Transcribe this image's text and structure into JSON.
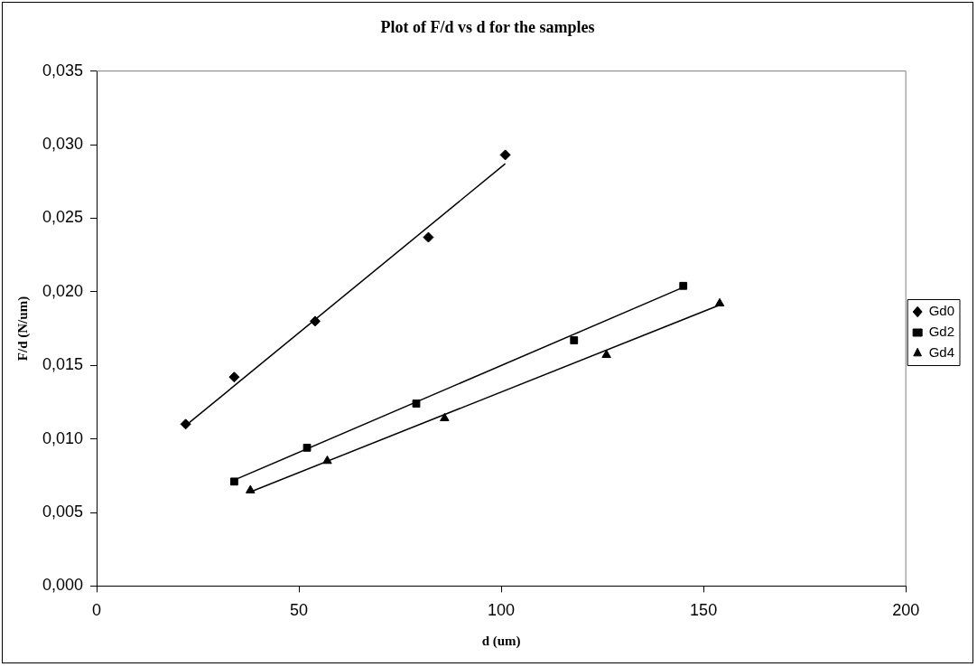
{
  "chart_data": {
    "type": "scatter",
    "title": "Plot of F/d vs d for the samples",
    "xlabel": "d (um)",
    "ylabel": "F/d (N/um)",
    "xlim": [
      0,
      200
    ],
    "xticks": [
      0,
      50,
      100,
      150,
      200
    ],
    "ylim": [
      0,
      0.035
    ],
    "yticks": [
      {
        "value": 0,
        "label": "0,000"
      },
      {
        "value": 0.005,
        "label": "0,005"
      },
      {
        "value": 0.01,
        "label": "0,010"
      },
      {
        "value": 0.015,
        "label": "0,015"
      },
      {
        "value": 0.02,
        "label": "0,020"
      },
      {
        "value": 0.025,
        "label": "0,025"
      },
      {
        "value": 0.03,
        "label": "0,030"
      },
      {
        "value": 0.035,
        "label": "0,035"
      }
    ],
    "grid": false,
    "legend": "right",
    "series": [
      {
        "name": "Gd0",
        "color": "#000000",
        "marker": "diamond",
        "x": [
          22,
          34,
          54,
          82,
          101
        ],
        "values": [
          0.011,
          0.0142,
          0.018,
          0.0237,
          0.0293
        ]
      },
      {
        "name": "Gd2",
        "color": "#000000",
        "marker": "square",
        "x": [
          34,
          52,
          79,
          118,
          145
        ],
        "values": [
          0.0071,
          0.0094,
          0.0124,
          0.0167,
          0.0204
        ]
      },
      {
        "name": "Gd4",
        "color": "#000000",
        "marker": "triangle",
        "x": [
          38,
          57,
          86,
          126,
          154
        ],
        "values": [
          0.0065,
          0.0085,
          0.0114,
          0.0157,
          0.0192
        ]
      },
      {
        "type": "line",
        "color": "#000000",
        "marker": "none",
        "line_style": "solid",
        "x": [
          22,
          101
        ],
        "values": [
          0.0109,
          0.0287
        ]
      },
      {
        "type": "line",
        "color": "#000000",
        "marker": "none",
        "line_style": "solid",
        "x": [
          34,
          145
        ],
        "values": [
          0.0072,
          0.0203
        ]
      },
      {
        "type": "line",
        "color": "#000000",
        "marker": "none",
        "line_style": "solid",
        "x": [
          38,
          154
        ],
        "values": [
          0.0064,
          0.0191
        ]
      }
    ]
  }
}
